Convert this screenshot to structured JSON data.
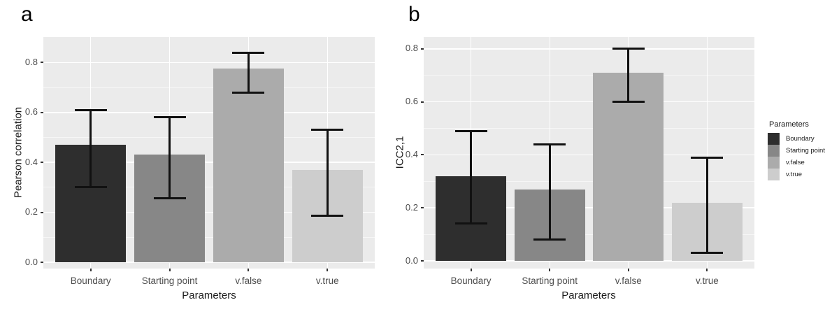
{
  "chart_data": [
    {
      "type": "bar",
      "panel_label": "a",
      "title": "",
      "xlabel": "Parameters",
      "ylabel": "Pearson correlation",
      "categories": [
        "Boundary",
        "Starting point",
        "v.false",
        "v.true"
      ],
      "values": [
        0.47,
        0.43,
        0.775,
        0.37
      ],
      "error_low": [
        0.3,
        0.255,
        0.68,
        0.185
      ],
      "error_high": [
        0.61,
        0.58,
        0.84,
        0.53
      ],
      "bar_colors": [
        "#2e2e2e",
        "#878787",
        "#ababab",
        "#cdcdcd"
      ],
      "ylim": [
        0,
        0.9
      ],
      "yticks": [
        0,
        0.2,
        0.4,
        0.6,
        0.8
      ],
      "ytick_labels": [
        "0.0",
        "0.2",
        "0.4",
        "0.6",
        "0.8"
      ],
      "grid": true,
      "legend_position": "right"
    },
    {
      "type": "bar",
      "panel_label": "b",
      "title": "",
      "xlabel": "Parameters",
      "ylabel": "ICC2,1",
      "categories": [
        "Boundary",
        "Starting point",
        "v.false",
        "v.true"
      ],
      "values": [
        0.32,
        0.27,
        0.71,
        0.22
      ],
      "error_low": [
        0.14,
        0.08,
        0.6,
        0.03
      ],
      "error_high": [
        0.49,
        0.44,
        0.8,
        0.39
      ],
      "bar_colors": [
        "#2e2e2e",
        "#878787",
        "#ababab",
        "#cdcdcd"
      ],
      "ylim": [
        0,
        0.84
      ],
      "yticks": [
        0,
        0.2,
        0.4,
        0.6,
        0.8
      ],
      "ytick_labels": [
        "0.0",
        "0.2",
        "0.4",
        "0.6",
        "0.8"
      ],
      "grid": true,
      "legend_position": "right"
    }
  ],
  "legend": {
    "title": "Parameters",
    "items": [
      {
        "label": "Boundary",
        "color": "#2e2e2e"
      },
      {
        "label": "Starting point",
        "color": "#878787"
      },
      {
        "label": "v.false",
        "color": "#ababab"
      },
      {
        "label": "v.true",
        "color": "#cdcdcd"
      }
    ]
  },
  "colors": {
    "panel_background": "#ebebeb",
    "gridline": "#ffffff",
    "error_bar": "#111111",
    "tick_mark": "#333333",
    "tick_text": "#4d4d4d",
    "axis_title_text": "#1a1a1a",
    "page_background": "#ffffff"
  }
}
